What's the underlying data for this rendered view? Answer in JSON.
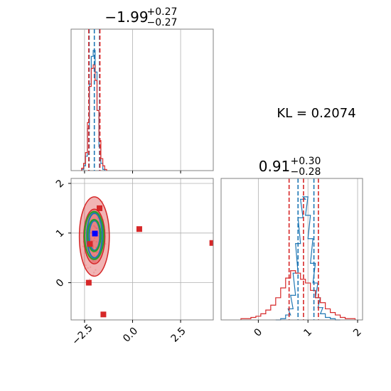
{
  "chart_data": [
    {
      "panel": "marginal-param-1",
      "type": "histogram",
      "title": {
        "median": "−1.99",
        "plus": "+0.27",
        "minus": "−0.27"
      },
      "xlim": [
        -3.2,
        4.2
      ],
      "grid": true,
      "series": [
        {
          "color": "#1f77b4",
          "bin_centers": [
            -2.6,
            -2.5,
            -2.4,
            -2.3,
            -2.2,
            -2.1,
            -2.0,
            -1.9,
            -1.8,
            -1.7,
            -1.6,
            -1.5
          ],
          "counts": [
            0.01,
            0.04,
            0.12,
            0.35,
            0.72,
            0.95,
            1.0,
            0.82,
            0.5,
            0.2,
            0.06,
            0.01
          ]
        },
        {
          "color": "#d62728",
          "bin_centers": [
            -2.6,
            -2.5,
            -2.4,
            -2.3,
            -2.2,
            -2.1,
            -2.0,
            -1.9,
            -1.8,
            -1.7,
            -1.6,
            -1.5,
            -1.4
          ],
          "counts": [
            0.02,
            0.06,
            0.15,
            0.4,
            0.7,
            0.85,
            0.88,
            0.75,
            0.5,
            0.25,
            0.1,
            0.04,
            0.01
          ]
        }
      ],
      "quantile_lines": [
        {
          "x": -2.26,
          "color": "#1f77b4"
        },
        {
          "x": -1.99,
          "color": "#1f77b4"
        },
        {
          "x": -1.72,
          "color": "#1f77b4"
        },
        {
          "x": -2.28,
          "color": "#d62728"
        },
        {
          "x": -1.7,
          "color": "#d62728"
        }
      ]
    },
    {
      "panel": "joint-2d",
      "type": "scatter",
      "xlim": [
        -3.2,
        4.2
      ],
      "ylim": [
        -0.75,
        2.1
      ],
      "grid": true,
      "x_ticks": [
        -2.5,
        0.0,
        2.5
      ],
      "x_tick_labels": [
        "−2.5",
        "0.0",
        "2.5"
      ],
      "y_ticks": [
        0,
        1,
        2
      ],
      "y_tick_labels": [
        "0",
        "1",
        "2"
      ],
      "red_points": [
        [
          -1.72,
          1.5
        ],
        [
          0.35,
          1.08
        ],
        [
          4.15,
          0.8
        ],
        [
          -2.28,
          0.0
        ],
        [
          -1.52,
          -0.64
        ],
        [
          -2.22,
          0.78
        ]
      ],
      "blue_points": [
        [
          -1.96,
          0.99
        ]
      ],
      "contours": [
        {
          "color": "#d62728",
          "filled": true,
          "cx": -1.99,
          "cy": 0.93,
          "rx": 0.78,
          "ry": 0.8
        },
        {
          "color": "#d62728",
          "filled": true,
          "cx": -1.99,
          "cy": 0.93,
          "rx": 0.55,
          "ry": 0.55
        },
        {
          "color": "#1f77b4",
          "filled": false,
          "cx": -1.98,
          "cy": 0.95,
          "rx": 0.4,
          "ry": 0.45
        },
        {
          "color": "#1f77b4",
          "filled": false,
          "cx": -1.98,
          "cy": 0.95,
          "rx": 0.28,
          "ry": 0.3
        },
        {
          "color": "#2ca02c",
          "filled": false,
          "cx": -2.0,
          "cy": 0.95,
          "rx": 0.5,
          "ry": 0.48
        },
        {
          "color": "#2ca02c",
          "filled": false,
          "cx": -2.0,
          "cy": 0.95,
          "rx": 0.34,
          "ry": 0.32
        }
      ]
    },
    {
      "panel": "marginal-param-2",
      "type": "histogram",
      "title": {
        "median": "0.91",
        "plus": "+0.30",
        "minus": "−0.28"
      },
      "xlim": [
        -0.75,
        2.1
      ],
      "grid": true,
      "x_ticks": [
        0,
        1,
        2
      ],
      "x_tick_labels": [
        "0",
        "1",
        "2"
      ],
      "series": [
        {
          "color": "#1f77b4",
          "bin_centers": [
            0.4,
            0.5,
            0.6,
            0.65,
            0.7,
            0.75,
            0.8,
            0.85,
            0.9,
            0.95,
            1.0,
            1.05,
            1.1,
            1.15,
            1.2,
            1.25,
            1.3,
            1.4,
            1.5,
            1.6
          ],
          "counts": [
            0.0,
            0.01,
            0.04,
            0.09,
            0.2,
            0.38,
            0.62,
            0.83,
            0.98,
            1.0,
            0.85,
            0.66,
            0.46,
            0.3,
            0.18,
            0.1,
            0.05,
            0.02,
            0.01,
            0.0
          ]
        },
        {
          "color": "#d62728",
          "bin_centers": [
            -0.3,
            -0.2,
            -0.1,
            0.0,
            0.1,
            0.2,
            0.3,
            0.4,
            0.5,
            0.6,
            0.7,
            0.8,
            0.9,
            1.0,
            1.1,
            1.2,
            1.3,
            1.4,
            1.5,
            1.6,
            1.7,
            1.8,
            1.9
          ],
          "counts": [
            0.01,
            0.01,
            0.02,
            0.03,
            0.05,
            0.08,
            0.12,
            0.18,
            0.26,
            0.34,
            0.4,
            0.38,
            0.33,
            0.3,
            0.24,
            0.18,
            0.14,
            0.09,
            0.06,
            0.04,
            0.02,
            0.01,
            0.01
          ]
        }
      ],
      "quantile_lines": [
        {
          "x": 0.8,
          "color": "#1f77b4"
        },
        {
          "x": 1.12,
          "color": "#1f77b4"
        },
        {
          "x": 0.62,
          "color": "#d62728"
        },
        {
          "x": 0.91,
          "color": "#d62728"
        },
        {
          "x": 1.21,
          "color": "#d62728"
        }
      ]
    }
  ],
  "annotation": {
    "kl_text": "KL = 0.2074"
  },
  "colors": {
    "blue": "#1f77b4",
    "red": "#d62728",
    "green": "#2ca02c",
    "grid": "#b0b0b0",
    "frame": "#808080"
  }
}
